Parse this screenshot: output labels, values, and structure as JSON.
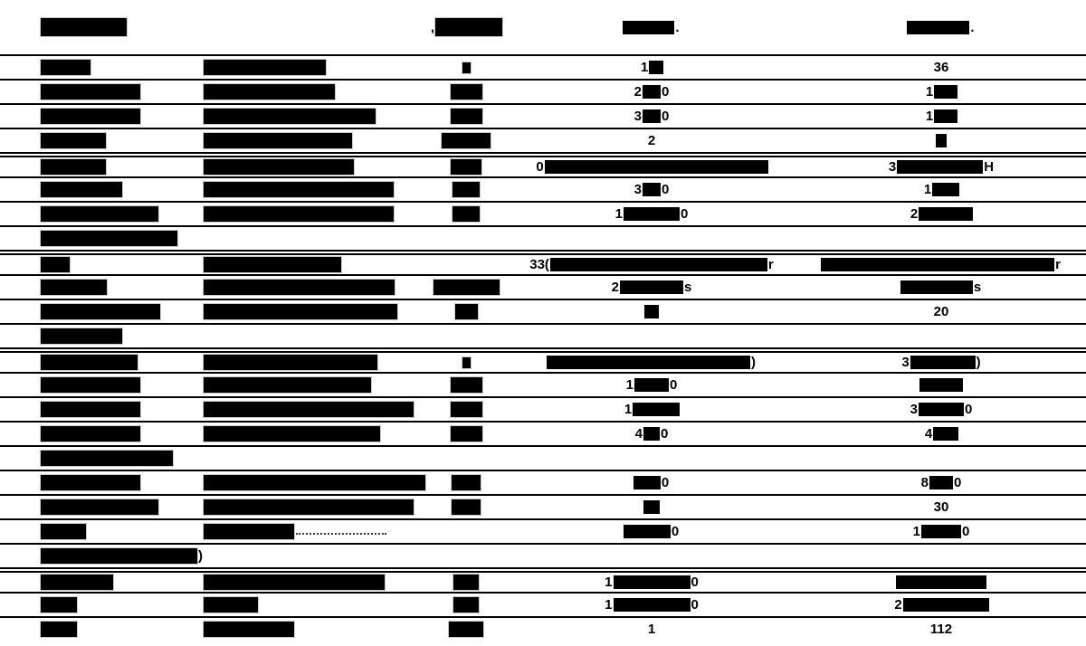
{
  "document": {
    "background": "#ffffff",
    "ink": "#000000",
    "redaction_color": "#000000",
    "table": {
      "header": {
        "cells": [
          [
            {
              "b": 95
            }
          ],
          [],
          [
            {
              "t": ","
            },
            {
              "b": 74
            }
          ],
          [
            {
              "b": 57
            },
            {
              "t": "."
            }
          ],
          [
            {
              "b": 69
            },
            {
              "t": "."
            }
          ]
        ]
      },
      "rows": [
        {
          "cells": [
            [
              {
                "b": 55
              }
            ],
            [
              {
                "b": 135
              }
            ],
            [
              {
                "b": 9,
                "h": 12
              }
            ],
            [
              {
                "t": "1"
              },
              {
                "b": 16
              }
            ],
            [
              {
                "t": "36"
              }
            ]
          ]
        },
        {
          "cells": [
            [
              {
                "b": 110
              }
            ],
            [
              {
                "b": 145
              }
            ],
            [
              {
                "b": 35
              }
            ],
            [
              {
                "t": "2"
              },
              {
                "b": 20
              },
              {
                "t": "0"
              }
            ],
            [
              {
                "t": "1"
              },
              {
                "b": 26
              }
            ]
          ]
        },
        {
          "cells": [
            [
              {
                "b": 110
              }
            ],
            [
              {
                "b": 190
              }
            ],
            [
              {
                "b": 35
              }
            ],
            [
              {
                "t": "3"
              },
              {
                "b": 20
              },
              {
                "t": "0"
              }
            ],
            [
              {
                "t": "1"
              },
              {
                "b": 26
              }
            ]
          ]
        },
        {
          "cells": [
            [
              {
                "b": 72
              }
            ],
            [
              {
                "b": 164
              }
            ],
            [
              {
                "b": 54
              }
            ],
            [
              {
                "t": "2"
              }
            ],
            [
              {
                "b": 12
              }
            ]
          ]
        },
        {
          "dbl": true,
          "cells": [
            [
              {
                "b": 72
              }
            ],
            [
              {
                "b": 166
              }
            ],
            [
              {
                "b": 34
              }
            ],
            [
              {
                "t": "0"
              },
              {
                "b": 247
              }
            ],
            [
              {
                "t": "3"
              },
              {
                "b": 95
              },
              {
                "t": "H"
              }
            ]
          ]
        },
        {
          "cells": [
            [
              {
                "b": 90
              }
            ],
            [
              {
                "b": 210
              }
            ],
            [
              {
                "b": 30
              }
            ],
            [
              {
                "t": "3"
              },
              {
                "b": 20
              },
              {
                "t": "0"
              }
            ],
            [
              {
                "t": "1"
              },
              {
                "b": 30
              }
            ]
          ]
        },
        {
          "cells": [
            [
              {
                "b": 130
              }
            ],
            [
              {
                "b": 210
              }
            ],
            [
              {
                "b": 30
              }
            ],
            [
              {
                "t": "1"
              },
              {
                "b": 62
              },
              {
                "t": "0"
              }
            ],
            [
              {
                "t": "2"
              },
              {
                "b": 60
              }
            ]
          ]
        },
        {
          "section": true,
          "cells": [
            [
              {
                "b": 151
              }
            ],
            [],
            [],
            [],
            []
          ]
        },
        {
          "dbl": true,
          "cells": [
            [
              {
                "b": 32
              }
            ],
            [
              {
                "b": 152
              }
            ],
            [],
            [
              {
                "t": "33("
              },
              {
                "b": 240
              },
              {
                "t": "r"
              }
            ],
            [
              {
                "b": 258
              },
              {
                "t": "r"
              }
            ]
          ]
        },
        {
          "cells": [
            [
              {
                "b": 73
              }
            ],
            [
              {
                "b": 211
              }
            ],
            [
              {
                "b": 73
              }
            ],
            [
              {
                "t": "2"
              },
              {
                "b": 70
              },
              {
                "t": "s"
              }
            ],
            [
              {
                "b": 80
              },
              {
                "t": "s"
              }
            ]
          ]
        },
        {
          "cells": [
            [
              {
                "b": 132
              }
            ],
            [
              {
                "b": 214
              }
            ],
            [
              {
                "b": 25
              }
            ],
            [
              {
                "b": 16
              }
            ],
            [
              {
                "t": "20"
              }
            ]
          ]
        },
        {
          "section": true,
          "cells": [
            [
              {
                "b": 90
              }
            ],
            [],
            [],
            [],
            []
          ]
        },
        {
          "dbl": true,
          "cells": [
            [
              {
                "b": 107
              }
            ],
            [
              {
                "b": 192
              }
            ],
            [
              {
                "b": 9,
                "h": 12
              }
            ],
            [
              {
                "b": 225
              },
              {
                "t": ")"
              }
            ],
            [
              {
                "t": "3"
              },
              {
                "b": 72
              },
              {
                "t": ")"
              }
            ]
          ]
        },
        {
          "cells": [
            [
              {
                "b": 110
              }
            ],
            [
              {
                "b": 185
              }
            ],
            [
              {
                "b": 35
              }
            ],
            [
              {
                "t": "1"
              },
              {
                "b": 38
              },
              {
                "t": "0"
              }
            ],
            [
              {
                "b": 48
              }
            ]
          ]
        },
        {
          "cells": [
            [
              {
                "b": 110
              }
            ],
            [
              {
                "b": 232
              }
            ],
            [
              {
                "b": 35
              }
            ],
            [
              {
                "t": "1"
              },
              {
                "b": 52
              }
            ],
            [
              {
                "t": "3"
              },
              {
                "b": 50
              },
              {
                "t": "0"
              }
            ]
          ]
        },
        {
          "cells": [
            [
              {
                "b": 110
              }
            ],
            [
              {
                "b": 195
              }
            ],
            [
              {
                "b": 35
              }
            ],
            [
              {
                "t": "4"
              },
              {
                "b": 18
              },
              {
                "t": "0"
              }
            ],
            [
              {
                "t": "4"
              },
              {
                "b": 28
              }
            ]
          ]
        },
        {
          "section": true,
          "cells": [
            [
              {
                "b": 146
              }
            ],
            [],
            [],
            [],
            []
          ]
        },
        {
          "cells": [
            [
              {
                "b": 110
              }
            ],
            [
              {
                "b": 245
              }
            ],
            [
              {
                "b": 32
              }
            ],
            [
              {
                "b": 30
              },
              {
                "t": "0"
              }
            ],
            [
              {
                "t": "8"
              },
              {
                "b": 26
              },
              {
                "t": "0"
              }
            ]
          ]
        },
        {
          "cells": [
            [
              {
                "b": 130
              }
            ],
            [
              {
                "b": 232
              }
            ],
            [
              {
                "b": 32
              }
            ],
            [
              {
                "b": 18
              }
            ],
            [
              {
                "t": "30"
              }
            ]
          ]
        },
        {
          "cells": [
            [
              {
                "b": 50
              }
            ],
            [
              {
                "b": 100
              },
              {
                "d": 100
              }
            ],
            [],
            [
              {
                "b": 52
              },
              {
                "t": "0"
              }
            ],
            [
              {
                "t": "1"
              },
              {
                "b": 44
              },
              {
                "t": "0"
              }
            ]
          ]
        },
        {
          "section": true,
          "cells": [
            [
              {
                "b": 250
              },
              {
                "t": ")"
              }
            ],
            [],
            [],
            [],
            []
          ]
        },
        {
          "dbl": true,
          "cells": [
            [
              {
                "b": 80
              }
            ],
            [
              {
                "b": 200
              }
            ],
            [
              {
                "b": 28
              }
            ],
            [
              {
                "t": "1"
              },
              {
                "b": 85
              },
              {
                "t": "0"
              }
            ],
            [
              {
                "b": 100
              }
            ]
          ]
        },
        {
          "cells": [
            [
              {
                "b": 40
              }
            ],
            [
              {
                "b": 60
              }
            ],
            [
              {
                "b": 28
              }
            ],
            [
              {
                "t": "1"
              },
              {
                "b": 85
              },
              {
                "t": "0"
              }
            ],
            [
              {
                "t": "2"
              },
              {
                "b": 95
              }
            ]
          ]
        },
        {
          "cells": [
            [
              {
                "b": 40
              }
            ],
            [
              {
                "b": 100
              }
            ],
            [
              {
                "b": 38
              }
            ],
            [
              {
                "t": "1"
              }
            ],
            [
              {
                "t": "112"
              }
            ]
          ]
        }
      ]
    }
  }
}
